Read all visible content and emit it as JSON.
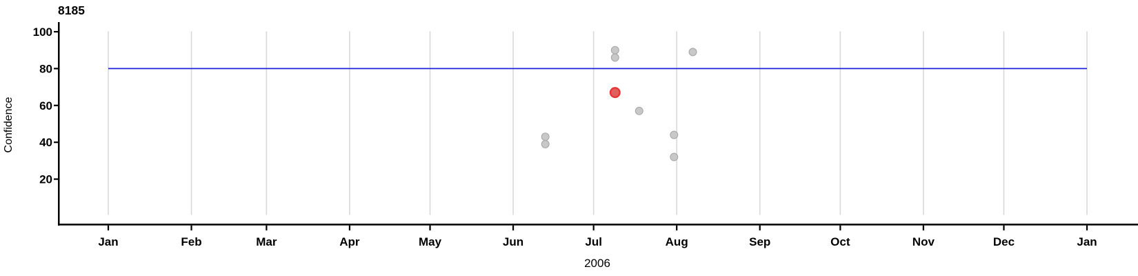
{
  "title": "8185",
  "colors": {
    "threshold_line": "#2020dd",
    "gridline": "#d9d9d9",
    "axis": "#000000",
    "point_fill": "#c8c8c8",
    "point_stroke": "#ababab",
    "highlight_fill": "#e05f5f",
    "highlight_stroke": "#e63535"
  },
  "y_axis": {
    "label": "Confidence",
    "ticks": [
      100,
      80,
      60,
      40,
      20
    ]
  },
  "x_axis": {
    "year_label": "2006",
    "months": [
      {
        "label": "Jan",
        "day": 0
      },
      {
        "label": "Feb",
        "day": 31
      },
      {
        "label": "Mar",
        "day": 59
      },
      {
        "label": "Apr",
        "day": 90
      },
      {
        "label": "May",
        "day": 120
      },
      {
        "label": "Jun",
        "day": 151
      },
      {
        "label": "Jul",
        "day": 181
      },
      {
        "label": "Aug",
        "day": 212
      },
      {
        "label": "Sep",
        "day": 243
      },
      {
        "label": "Oct",
        "day": 273
      },
      {
        "label": "Nov",
        "day": 304
      },
      {
        "label": "Dec",
        "day": 334
      },
      {
        "label": "Jan",
        "day": 365
      }
    ]
  },
  "chart_data": {
    "type": "scatter",
    "title": "8185",
    "xlabel": "2006",
    "ylabel": "Confidence",
    "ylim": [
      0,
      100
    ],
    "x_range": [
      "2006-01-01",
      "2007-01-01"
    ],
    "grid": "vertical-months-only",
    "threshold_line": {
      "y": 80,
      "style": "solid horizontal blue"
    },
    "points": [
      {
        "date": "2006-06-13",
        "day": 163,
        "confidence": 43,
        "highlighted": false
      },
      {
        "date": "2006-06-13",
        "day": 163,
        "confidence": 39,
        "highlighted": false
      },
      {
        "date": "2006-07-09",
        "day": 189,
        "confidence": 90,
        "highlighted": false
      },
      {
        "date": "2006-07-09",
        "day": 189,
        "confidence": 86,
        "highlighted": false
      },
      {
        "date": "2006-07-09",
        "day": 189,
        "confidence": 67,
        "highlighted": true
      },
      {
        "date": "2006-07-18",
        "day": 198,
        "confidence": 57,
        "highlighted": false
      },
      {
        "date": "2006-07-31",
        "day": 211,
        "confidence": 44,
        "highlighted": false
      },
      {
        "date": "2006-07-31",
        "day": 211,
        "confidence": 32,
        "highlighted": false
      },
      {
        "date": "2006-08-07",
        "day": 218,
        "confidence": 89,
        "highlighted": false
      }
    ]
  }
}
